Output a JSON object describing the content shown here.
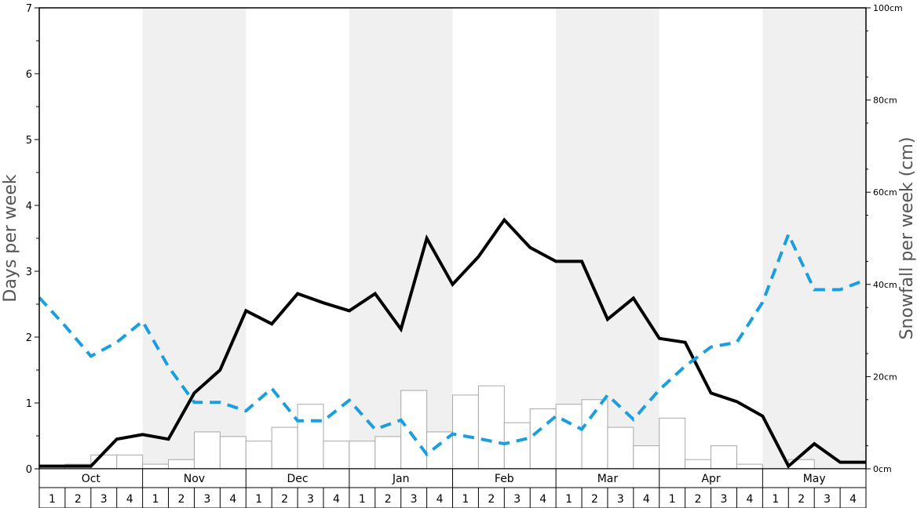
{
  "chart_data": {
    "type": "bar+line",
    "months": [
      "Oct",
      "Nov",
      "Dec",
      "Jan",
      "Feb",
      "Mar",
      "Apr",
      "May"
    ],
    "weeks": [
      "1",
      "2",
      "3",
      "4"
    ],
    "left_axis": {
      "label": "Days per week",
      "ylim": [
        0,
        7
      ],
      "ticks": [
        "0",
        "1",
        "2",
        "3",
        "4",
        "5",
        "6",
        "7"
      ]
    },
    "right_axis": {
      "label": "Snowfall per week (cm)",
      "ylim": [
        0,
        100
      ],
      "ticks": [
        {
          "value": 0,
          "label": "0cm"
        },
        {
          "value": 20,
          "label": "20cm"
        },
        {
          "value": 40,
          "label": "40cm"
        },
        {
          "value": 60,
          "label": "60cm"
        },
        {
          "value": 80,
          "label": "80cm"
        },
        {
          "value": 100,
          "label": "100cm"
        }
      ]
    },
    "series": [
      {
        "type": "bar",
        "axis": "right",
        "values": [
          0,
          1,
          3,
          3,
          1,
          2,
          8,
          7,
          6,
          9,
          14,
          6,
          6,
          7,
          17,
          8,
          16,
          18,
          10,
          13,
          14,
          15,
          9,
          5,
          11,
          2,
          5,
          1,
          0,
          2,
          0,
          0
        ]
      },
      {
        "type": "line",
        "axis": "left",
        "style": "solid",
        "color": "#000000",
        "values": [
          0.04,
          0.04,
          0.04,
          0.45,
          0.52,
          0.45,
          1.15,
          1.5,
          2.4,
          2.2,
          2.66,
          2.52,
          2.4,
          2.66,
          2.12,
          3.5,
          2.8,
          3.22,
          3.78,
          3.36,
          3.15,
          3.15,
          2.27,
          2.59,
          1.98,
          1.92,
          1.15,
          1.02,
          0.8,
          0.04,
          0.38,
          0.1,
          0.1
        ]
      },
      {
        "type": "line",
        "axis": "left",
        "style": "dashed",
        "color": "#1a9ee0",
        "values": [
          2.6,
          2.17,
          1.71,
          1.92,
          2.24,
          1.55,
          1.01,
          1.01,
          0.88,
          1.22,
          0.73,
          0.73,
          1.04,
          0.6,
          0.74,
          0.22,
          0.53,
          0.46,
          0.38,
          0.47,
          0.8,
          0.6,
          1.12,
          0.75,
          1.2,
          1.56,
          1.85,
          1.92,
          2.53,
          3.56,
          2.72,
          2.72,
          2.87
        ]
      }
    ],
    "grid": false,
    "shaded_months": [
      1,
      3,
      5,
      7
    ],
    "colors": {
      "bar_fill": "#ffffff",
      "bar_stroke": "#a8a8a8",
      "shade": "#f0f0f0",
      "solid_line": "#000000",
      "dashed_line": "#1a9ee0"
    }
  }
}
